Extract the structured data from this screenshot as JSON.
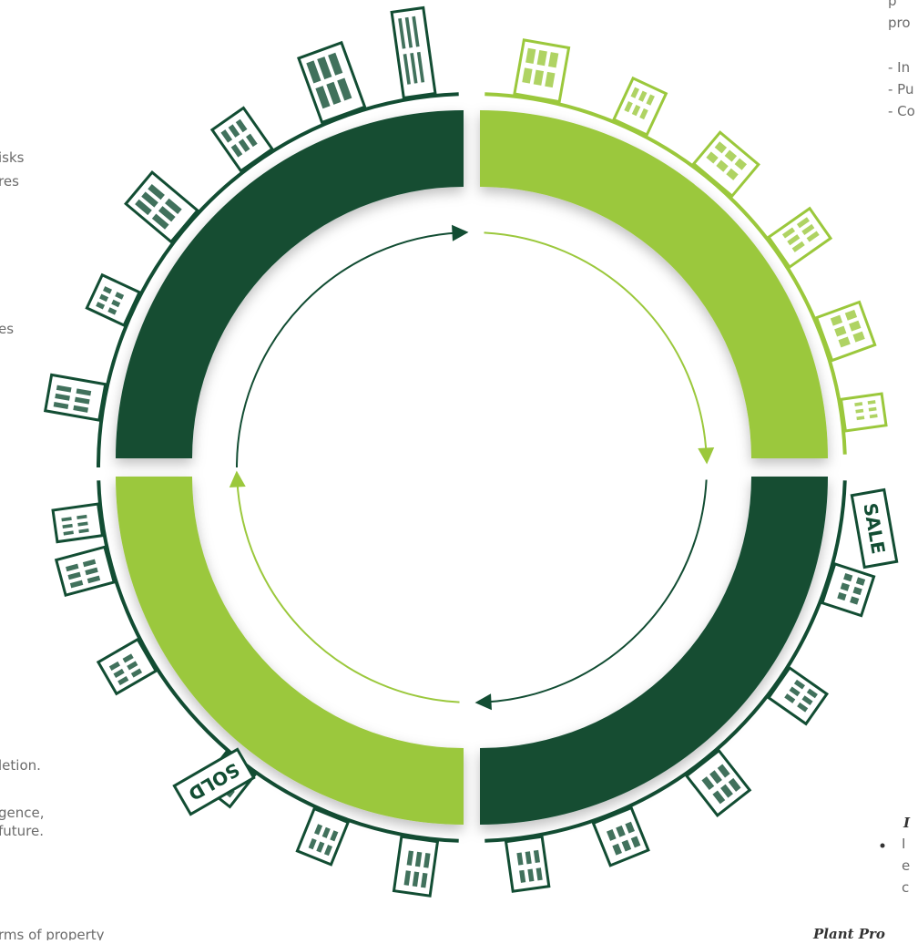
{
  "left_fragments": [
    "isks",
    "res",
    "es",
    "letion.",
    "gence,",
    "future.",
    "rms of property"
  ],
  "right_fragments": {
    "lines": [
      "p",
      "pro",
      "- In",
      "- Pu",
      "- Co"
    ],
    "bullet_title": "I",
    "bullet_lines": [
      "I",
      "e",
      "c"
    ],
    "heading": "Plant Pro"
  },
  "signs": {
    "sale": "SALE",
    "sold": "SOLD"
  }
}
